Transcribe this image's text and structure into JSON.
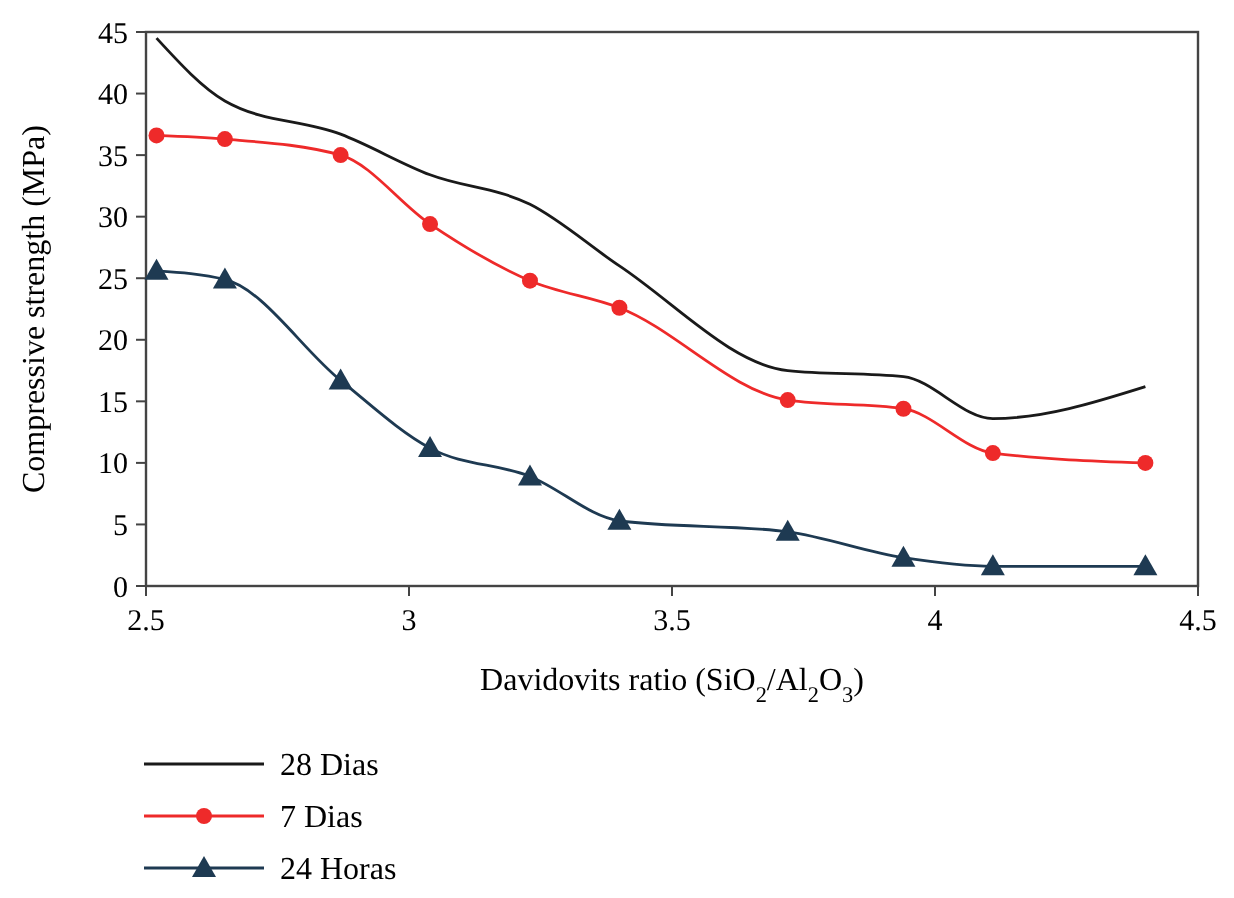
{
  "chart_data": {
    "type": "line",
    "xlabel": "Davidovits ratio (SiO$_{2}$/Al$_{2}$O$_{3}$)",
    "ylabel": "Compressive strength (MPa)",
    "x": [
      2.52,
      2.65,
      2.87,
      3.04,
      3.23,
      3.4,
      3.72,
      3.94,
      4.11,
      4.4
    ],
    "xlim": [
      2.5,
      4.5
    ],
    "xticks": [
      2.5,
      3,
      3.5,
      4,
      4.5
    ],
    "ylim": [
      0,
      45
    ],
    "yticks": [
      0,
      5,
      10,
      15,
      20,
      25,
      30,
      35,
      40,
      45
    ],
    "grid": false,
    "legend": "bottom",
    "series": [
      {
        "name": "28 Dias",
        "color": "#1a1a1a",
        "marker": "none",
        "values": [
          44.5,
          39.4,
          36.7,
          33.4,
          31.0,
          26.0,
          17.5,
          17.0,
          13.6,
          16.2
        ]
      },
      {
        "name": "7 Dias",
        "color": "#ee2a2a",
        "marker": "circle",
        "values": [
          36.6,
          36.3,
          35.0,
          29.4,
          24.8,
          22.6,
          15.1,
          14.4,
          10.8,
          10.0
        ]
      },
      {
        "name": "24 Horas",
        "color": "#1e3a52",
        "marker": "triangle",
        "values": [
          25.6,
          24.9,
          16.7,
          11.2,
          8.9,
          5.3,
          4.4,
          2.3,
          1.6,
          1.6
        ]
      }
    ]
  }
}
